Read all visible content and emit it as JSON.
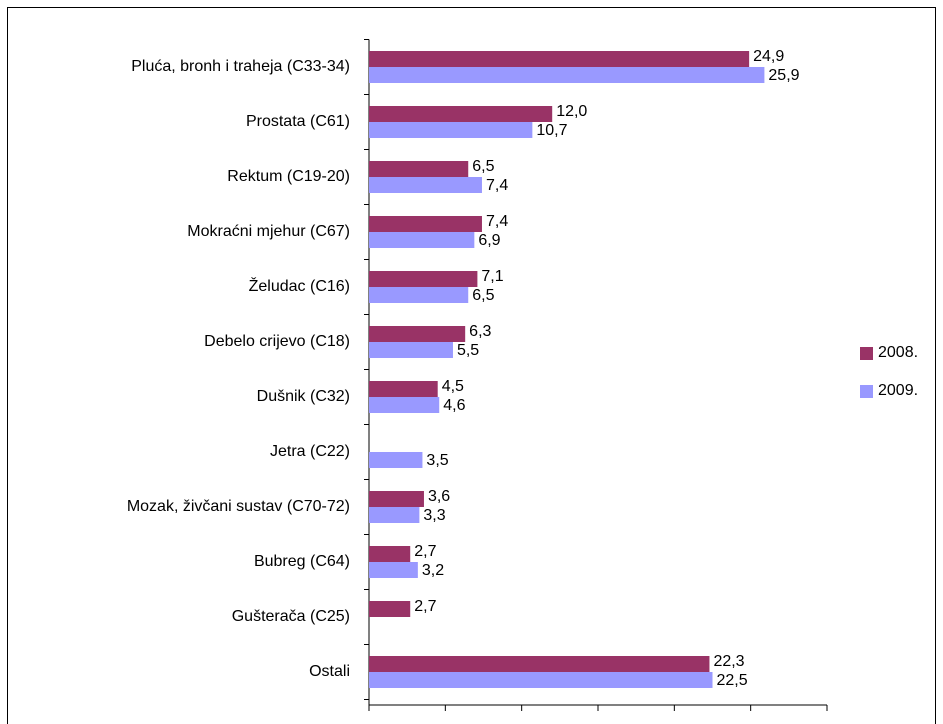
{
  "chart_data": {
    "type": "bar",
    "orientation": "horizontal",
    "categories": [
      "Pluća, bronh i traheja (C33-34)",
      "Prostata (C61)",
      "Rektum (C19-20)",
      "Mokraćni mjehur (C67)",
      "Želudac (C16)",
      "Debelo crijevo (C18)",
      "Dušnik (C32)",
      "Jetra (C22)",
      "Mozak, živčani sustav (C70-72)",
      "Bubreg (C64)",
      "Gušterača (C25)",
      "Ostali"
    ],
    "series": [
      {
        "name": "2008.",
        "color": "#993366",
        "values": [
          24.9,
          12.0,
          6.5,
          7.4,
          7.1,
          6.3,
          4.5,
          null,
          3.6,
          2.7,
          2.7,
          22.3
        ],
        "value_labels": [
          "24,9",
          "12,0",
          "6,5",
          "7,4",
          "7,1",
          "6,3",
          "4,5",
          null,
          "3,6",
          "2,7",
          "2,7",
          "22,3"
        ]
      },
      {
        "name": "2009.",
        "color": "#9999ff",
        "values": [
          25.9,
          10.7,
          7.4,
          6.9,
          6.5,
          5.5,
          4.6,
          3.5,
          3.3,
          3.2,
          null,
          22.5
        ],
        "value_labels": [
          "25,9",
          "10,7",
          "7,4",
          "6,9",
          "6,5",
          "5,5",
          "4,6",
          "3,5",
          "3,3",
          "3,2",
          null,
          "22,5"
        ]
      }
    ],
    "xlim": [
      0,
      30
    ],
    "xticks": [
      0,
      5,
      10,
      15,
      20,
      25,
      30
    ],
    "legend": "right"
  }
}
